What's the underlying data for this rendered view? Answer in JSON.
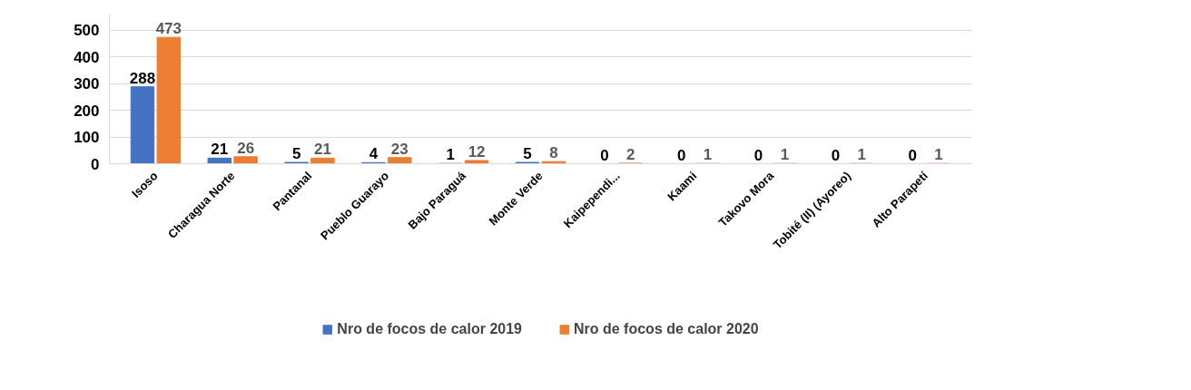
{
  "chart_data": {
    "type": "bar",
    "categories": [
      "Isoso",
      "Charagua Norte",
      "Pantanal",
      "Pueblo Guarayo",
      "Bajo Paraguá",
      "Monte Verde",
      "Kaipependi...",
      "Kaami",
      "Takovo Mora",
      "Tobité (II) (Ayoreo)",
      "Alto Parapetí"
    ],
    "series": [
      {
        "name": "Nro de focos de calor 2019",
        "color": "#4472c4",
        "values": [
          288,
          21,
          5,
          4,
          1,
          5,
          0,
          0,
          0,
          0,
          0
        ]
      },
      {
        "name": "Nro de focos de calor 2020",
        "color": "#ed7d31",
        "values": [
          473,
          26,
          21,
          23,
          12,
          8,
          2,
          1,
          1,
          1,
          1
        ]
      }
    ],
    "ylim": [
      0,
      560
    ],
    "yticks": [
      0,
      100,
      200,
      300,
      400,
      500
    ],
    "grid": "y",
    "legend": "bottom",
    "data_labels": true
  }
}
